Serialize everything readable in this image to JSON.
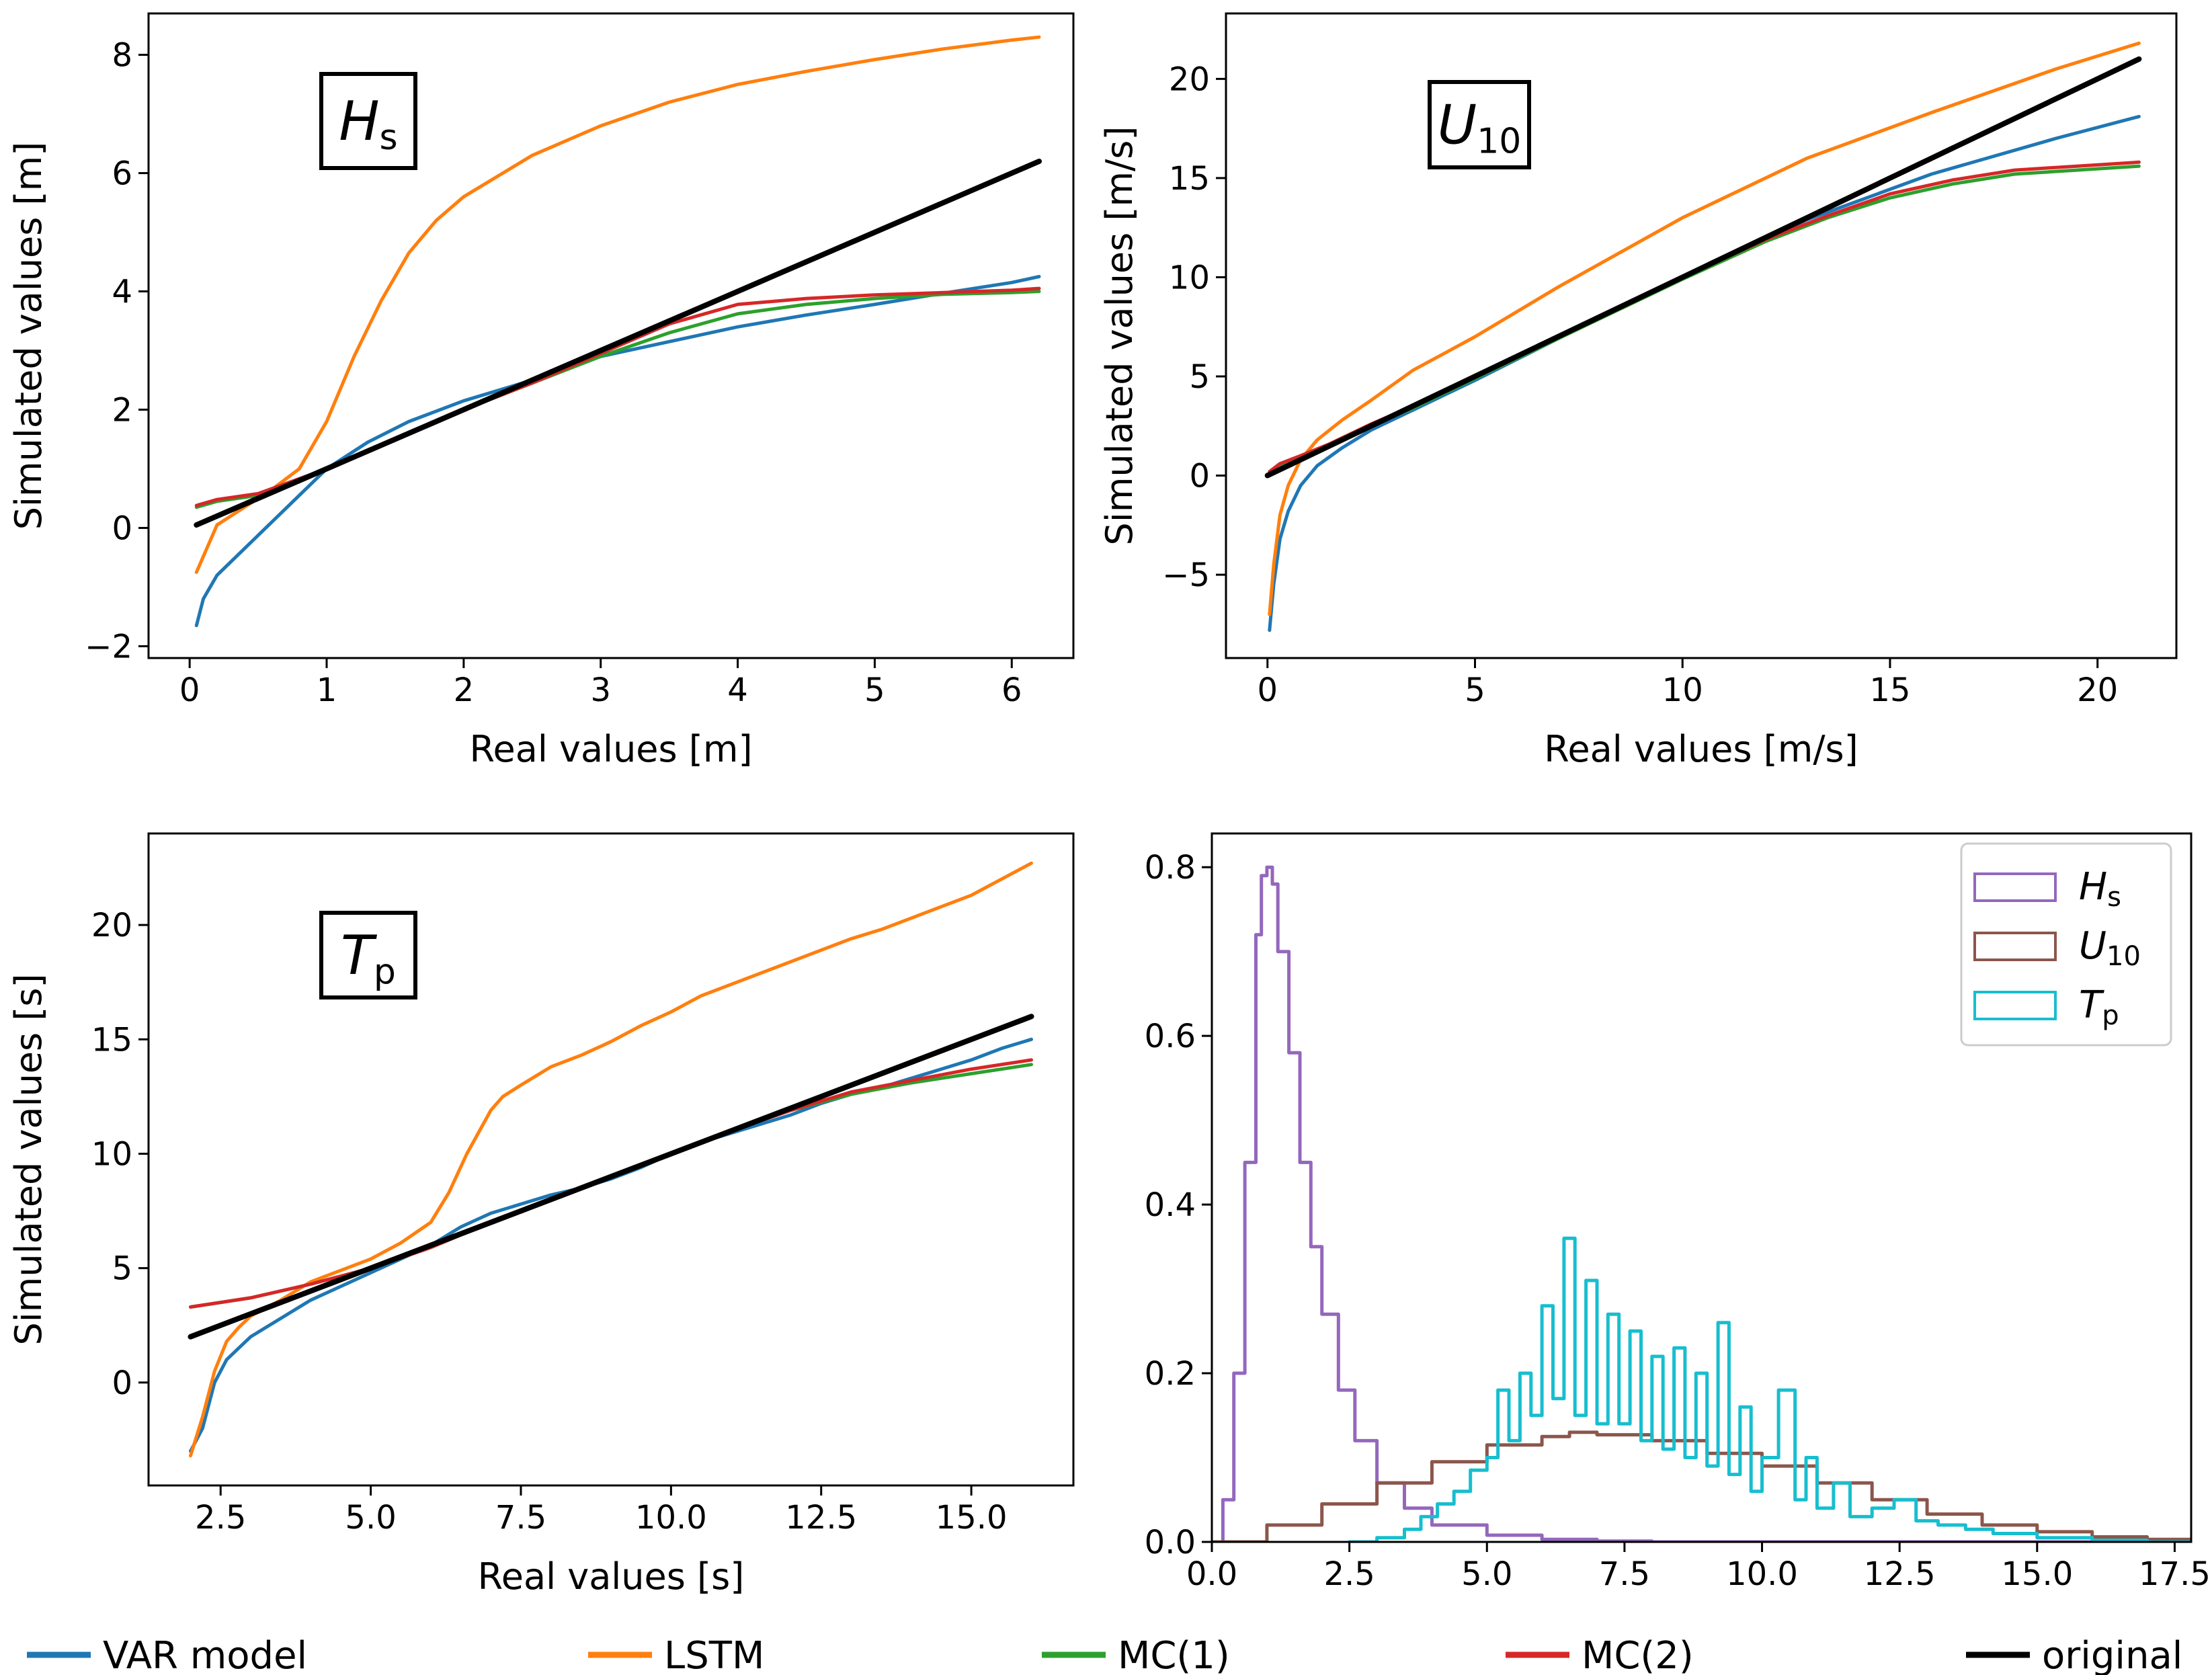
{
  "chart_data": [
    {
      "type": "line",
      "panel": "top-left",
      "annotation": {
        "main": "H",
        "sub": "s"
      },
      "xlabel": "Real values [m]",
      "ylabel": "Simulated values [m]",
      "xlim": [
        -0.3,
        6.45
      ],
      "ylim": [
        -2.2,
        8.7
      ],
      "xticks": [
        0,
        1,
        2,
        3,
        4,
        5,
        6
      ],
      "xtick_labels": [
        "0",
        "1",
        "2",
        "3",
        "4",
        "5",
        "6"
      ],
      "yticks": [
        -2,
        0,
        2,
        4,
        6,
        8
      ],
      "ytick_labels": [
        "−2",
        "0",
        "2",
        "4",
        "6",
        "8"
      ],
      "series": [
        {
          "name": "VAR model",
          "color": "#1f77b4",
          "x": [
            0.05,
            0.1,
            0.2,
            0.4,
            0.6,
            0.8,
            1.0,
            1.3,
            1.6,
            2.0,
            2.5,
            3.0,
            3.5,
            4.0,
            4.5,
            5.0,
            5.5,
            6.0,
            6.2
          ],
          "y": [
            -1.65,
            -1.2,
            -0.8,
            -0.35,
            0.1,
            0.55,
            1.0,
            1.45,
            1.8,
            2.15,
            2.5,
            2.9,
            3.15,
            3.4,
            3.6,
            3.78,
            3.97,
            4.15,
            4.25
          ]
        },
        {
          "name": "LSTM",
          "color": "#ff7f0e",
          "x": [
            0.05,
            0.2,
            0.4,
            0.6,
            0.8,
            1.0,
            1.2,
            1.4,
            1.6,
            1.8,
            2.0,
            2.5,
            3.0,
            3.5,
            4.0,
            4.5,
            5.0,
            5.5,
            6.0,
            6.2
          ],
          "y": [
            -0.75,
            0.05,
            0.35,
            0.65,
            1.0,
            1.8,
            2.9,
            3.85,
            4.65,
            5.2,
            5.6,
            6.3,
            6.8,
            7.2,
            7.5,
            7.72,
            7.92,
            8.1,
            8.25,
            8.3
          ]
        },
        {
          "name": "MC(1)",
          "color": "#2ca02c",
          "x": [
            0.05,
            0.2,
            0.5,
            1.0,
            1.5,
            2.0,
            2.5,
            3.0,
            3.5,
            4.0,
            4.5,
            5.0,
            5.5,
            6.0,
            6.2
          ],
          "y": [
            0.35,
            0.45,
            0.55,
            1.0,
            1.5,
            2.0,
            2.45,
            2.9,
            3.3,
            3.62,
            3.78,
            3.88,
            3.95,
            3.98,
            4.0
          ]
        },
        {
          "name": "MC(2)",
          "color": "#d62728",
          "x": [
            0.05,
            0.2,
            0.5,
            1.0,
            1.5,
            2.0,
            2.5,
            3.0,
            3.5,
            4.0,
            4.5,
            5.0,
            5.5,
            6.0,
            6.2
          ],
          "y": [
            0.38,
            0.48,
            0.58,
            1.0,
            1.5,
            2.0,
            2.45,
            2.95,
            3.45,
            3.78,
            3.88,
            3.94,
            3.98,
            4.02,
            4.05
          ]
        },
        {
          "name": "original",
          "color": "#000000",
          "x": [
            0.05,
            6.2
          ],
          "y": [
            0.05,
            6.2
          ]
        }
      ]
    },
    {
      "type": "line",
      "panel": "top-right",
      "annotation": {
        "main": "U",
        "sub": "10"
      },
      "xlabel": "Real values [m/s]",
      "ylabel": "Simulated values [m/s]",
      "xlim": [
        -1.0,
        21.9
      ],
      "ylim": [
        -9.2,
        23.3
      ],
      "xticks": [
        0,
        5,
        10,
        15,
        20
      ],
      "xtick_labels": [
        "0",
        "5",
        "10",
        "15",
        "20"
      ],
      "yticks": [
        -5,
        0,
        5,
        10,
        15,
        20
      ],
      "ytick_labels": [
        "−5",
        "0",
        "5",
        "10",
        "15",
        "20"
      ],
      "series": [
        {
          "name": "VAR model",
          "color": "#1f77b4",
          "x": [
            0.05,
            0.15,
            0.3,
            0.5,
            0.8,
            1.2,
            1.8,
            2.5,
            3.5,
            5,
            7,
            10,
            13,
            16,
            19,
            21
          ],
          "y": [
            -7.8,
            -5.5,
            -3.2,
            -1.8,
            -0.5,
            0.5,
            1.4,
            2.3,
            3.3,
            4.8,
            6.9,
            10.0,
            12.9,
            15.2,
            17.0,
            18.1
          ]
        },
        {
          "name": "LSTM",
          "color": "#ff7f0e",
          "x": [
            0.05,
            0.15,
            0.3,
            0.5,
            0.8,
            1.2,
            1.8,
            2.5,
            3.5,
            5,
            7,
            10,
            13,
            16,
            19,
            21
          ],
          "y": [
            -7.0,
            -4.5,
            -2.0,
            -0.5,
            0.8,
            1.8,
            2.8,
            3.8,
            5.3,
            7.0,
            9.5,
            13.0,
            16.0,
            18.3,
            20.5,
            21.8
          ]
        },
        {
          "name": "MC(1)",
          "color": "#2ca02c",
          "x": [
            0.05,
            0.3,
            0.8,
            1.5,
            2.5,
            3.5,
            5,
            7,
            10,
            12,
            13.5,
            15,
            16.5,
            18,
            19.5,
            21
          ],
          "y": [
            0.0,
            0.5,
            0.9,
            1.5,
            2.5,
            3.4,
            4.9,
            6.9,
            9.9,
            11.8,
            13.0,
            14.0,
            14.7,
            15.2,
            15.4,
            15.6
          ]
        },
        {
          "name": "MC(2)",
          "color": "#d62728",
          "x": [
            0.05,
            0.3,
            0.8,
            1.5,
            2.5,
            3.5,
            5,
            7,
            10,
            12,
            13.5,
            15,
            16.5,
            18,
            19.5,
            21
          ],
          "y": [
            0.2,
            0.6,
            1.0,
            1.6,
            2.6,
            3.5,
            5.0,
            7.0,
            10.0,
            11.9,
            13.1,
            14.2,
            14.9,
            15.4,
            15.6,
            15.8
          ]
        },
        {
          "name": "original",
          "color": "#000000",
          "x": [
            0.0,
            21.0
          ],
          "y": [
            0.0,
            21.0
          ]
        }
      ]
    },
    {
      "type": "line",
      "panel": "bottom-left",
      "annotation": {
        "main": "T",
        "sub": "p"
      },
      "xlabel": "Real values [s]",
      "ylabel": "Simulated values [s]",
      "xlim": [
        1.3,
        16.7
      ],
      "ylim": [
        -4.5,
        24.0
      ],
      "xticks": [
        2.5,
        5.0,
        7.5,
        10.0,
        12.5,
        15.0
      ],
      "xtick_labels": [
        "2.5",
        "5.0",
        "7.5",
        "10.0",
        "12.5",
        "15.0"
      ],
      "yticks": [
        0,
        5,
        10,
        15,
        20
      ],
      "ytick_labels": [
        "0",
        "5",
        "10",
        "15",
        "20"
      ],
      "series": [
        {
          "name": "VAR model",
          "color": "#1f77b4",
          "x": [
            2.0,
            2.2,
            2.4,
            2.6,
            2.8,
            3.0,
            3.5,
            4.0,
            4.5,
            5.0,
            5.5,
            6.0,
            6.5,
            7.0,
            7.5,
            8.0,
            8.5,
            9.0,
            9.5,
            10.0,
            10.5,
            11.0,
            11.5,
            12.0,
            12.5,
            13.0,
            13.5,
            14.0,
            14.5,
            15.0,
            15.5,
            16.0
          ],
          "y": [
            -3.0,
            -2.0,
            0.0,
            1.0,
            1.5,
            2.0,
            2.8,
            3.6,
            4.2,
            4.8,
            5.4,
            6.0,
            6.8,
            7.4,
            7.8,
            8.2,
            8.5,
            8.9,
            9.4,
            10.0,
            10.5,
            10.9,
            11.3,
            11.7,
            12.2,
            12.6,
            12.9,
            13.3,
            13.7,
            14.1,
            14.6,
            15.0
          ]
        },
        {
          "name": "LSTM",
          "color": "#ff7f0e",
          "x": [
            2.0,
            2.2,
            2.4,
            2.6,
            2.8,
            3.0,
            3.5,
            4.0,
            4.5,
            5.0,
            5.5,
            6.0,
            6.3,
            6.6,
            7.0,
            7.2,
            7.5,
            8.0,
            8.5,
            9.0,
            9.5,
            10.0,
            10.5,
            11.0,
            11.5,
            12.0,
            12.5,
            13.0,
            13.5,
            14.0,
            14.5,
            15.0,
            15.5,
            16.0
          ],
          "y": [
            -3.2,
            -1.5,
            0.5,
            1.8,
            2.4,
            2.9,
            3.6,
            4.4,
            4.9,
            5.4,
            6.1,
            7.0,
            8.3,
            10.0,
            11.9,
            12.5,
            13.0,
            13.8,
            14.3,
            14.9,
            15.6,
            16.2,
            16.9,
            17.4,
            17.9,
            18.4,
            18.9,
            19.4,
            19.8,
            20.3,
            20.8,
            21.3,
            22.0,
            22.7
          ]
        },
        {
          "name": "MC(1)",
          "color": "#2ca02c",
          "x": [
            2.0,
            3.0,
            4.0,
            5.0,
            6.0,
            7.0,
            8.0,
            9.0,
            10.0,
            11.0,
            12.0,
            13.0,
            14.0,
            15.0,
            16.0
          ],
          "y": [
            3.3,
            3.7,
            4.3,
            5.0,
            5.9,
            7.0,
            8.0,
            9.0,
            10.0,
            11.0,
            11.9,
            12.6,
            13.1,
            13.5,
            13.9
          ]
        },
        {
          "name": "MC(2)",
          "color": "#d62728",
          "x": [
            2.0,
            3.0,
            4.0,
            5.0,
            6.0,
            7.0,
            8.0,
            9.0,
            10.0,
            11.0,
            12.0,
            13.0,
            14.0,
            15.0,
            16.0
          ],
          "y": [
            3.3,
            3.7,
            4.3,
            5.0,
            5.9,
            7.0,
            8.0,
            9.0,
            10.0,
            11.0,
            11.9,
            12.7,
            13.2,
            13.7,
            14.1
          ]
        },
        {
          "name": "original",
          "color": "#000000",
          "x": [
            2.0,
            16.0
          ],
          "y": [
            2.0,
            16.0
          ]
        }
      ]
    },
    {
      "type": "histogram",
      "panel": "bottom-right",
      "xlabel": "",
      "ylabel": "",
      "xlim": [
        0.0,
        17.8
      ],
      "ylim": [
        0.0,
        0.84
      ],
      "xticks": [
        0.0,
        2.5,
        5.0,
        7.5,
        10.0,
        12.5,
        15.0,
        17.5
      ],
      "xtick_labels": [
        "0.0",
        "2.5",
        "5.0",
        "7.5",
        "10.0",
        "12.5",
        "15.0",
        "17.5"
      ],
      "yticks": [
        0.0,
        0.2,
        0.4,
        0.6,
        0.8
      ],
      "ytick_labels": [
        "0.0",
        "0.2",
        "0.4",
        "0.6",
        "0.8"
      ],
      "legend_placement": "top-right",
      "series": [
        {
          "name": "H",
          "sub": "s",
          "color": "#9467bd",
          "x": [
            0.0,
            0.2,
            0.4,
            0.6,
            0.8,
            0.9,
            1.0,
            1.1,
            1.2,
            1.4,
            1.6,
            1.8,
            2.0,
            2.3,
            2.6,
            3.0,
            3.5,
            4.0,
            5.0,
            6.0,
            7.0,
            8.0,
            17.8
          ],
          "y": [
            0.0,
            0.05,
            0.2,
            0.45,
            0.72,
            0.79,
            0.8,
            0.78,
            0.7,
            0.58,
            0.45,
            0.35,
            0.27,
            0.18,
            0.12,
            0.07,
            0.04,
            0.02,
            0.008,
            0.003,
            0.001,
            0.0,
            0.0
          ]
        },
        {
          "name": "U",
          "sub": "10",
          "color": "#8c564b",
          "x": [
            0.0,
            1.0,
            2.0,
            3.0,
            4.0,
            5.0,
            6.0,
            6.5,
            7.0,
            8.0,
            9.0,
            10.0,
            11.0,
            12.0,
            13.0,
            14.0,
            15.0,
            16.0,
            17.0,
            17.8
          ],
          "y": [
            0.0,
            0.02,
            0.045,
            0.07,
            0.095,
            0.115,
            0.125,
            0.13,
            0.127,
            0.12,
            0.105,
            0.09,
            0.07,
            0.05,
            0.033,
            0.02,
            0.012,
            0.006,
            0.003,
            0.001
          ]
        },
        {
          "name": "T",
          "sub": "p",
          "color": "#17becf",
          "x": [
            2.5,
            3.0,
            3.5,
            3.8,
            4.1,
            4.4,
            4.7,
            5.0,
            5.2,
            5.4,
            5.6,
            5.8,
            6.0,
            6.2,
            6.4,
            6.6,
            6.8,
            7.0,
            7.2,
            7.4,
            7.6,
            7.8,
            8.0,
            8.2,
            8.4,
            8.6,
            8.8,
            9.0,
            9.2,
            9.4,
            9.6,
            9.8,
            10.0,
            10.3,
            10.6,
            10.8,
            11.0,
            11.3,
            11.6,
            12.0,
            12.4,
            12.8,
            13.2,
            13.7,
            14.2,
            15.0,
            16.0,
            17.0
          ],
          "y": [
            0.0,
            0.005,
            0.015,
            0.03,
            0.045,
            0.06,
            0.085,
            0.1,
            0.18,
            0.12,
            0.2,
            0.15,
            0.28,
            0.17,
            0.36,
            0.15,
            0.31,
            0.14,
            0.27,
            0.14,
            0.25,
            0.12,
            0.22,
            0.11,
            0.23,
            0.1,
            0.2,
            0.09,
            0.26,
            0.08,
            0.16,
            0.06,
            0.1,
            0.18,
            0.05,
            0.1,
            0.04,
            0.07,
            0.03,
            0.04,
            0.05,
            0.025,
            0.02,
            0.015,
            0.01,
            0.005,
            0.002,
            0.0
          ]
        }
      ]
    }
  ],
  "figure_legend": [
    {
      "label": "VAR model",
      "color": "#1f77b4"
    },
    {
      "label": "LSTM",
      "color": "#ff7f0e"
    },
    {
      "label": "MC(1)",
      "color": "#2ca02c"
    },
    {
      "label": "MC(2)",
      "color": "#d62728"
    },
    {
      "label": "original",
      "color": "#000000"
    }
  ]
}
